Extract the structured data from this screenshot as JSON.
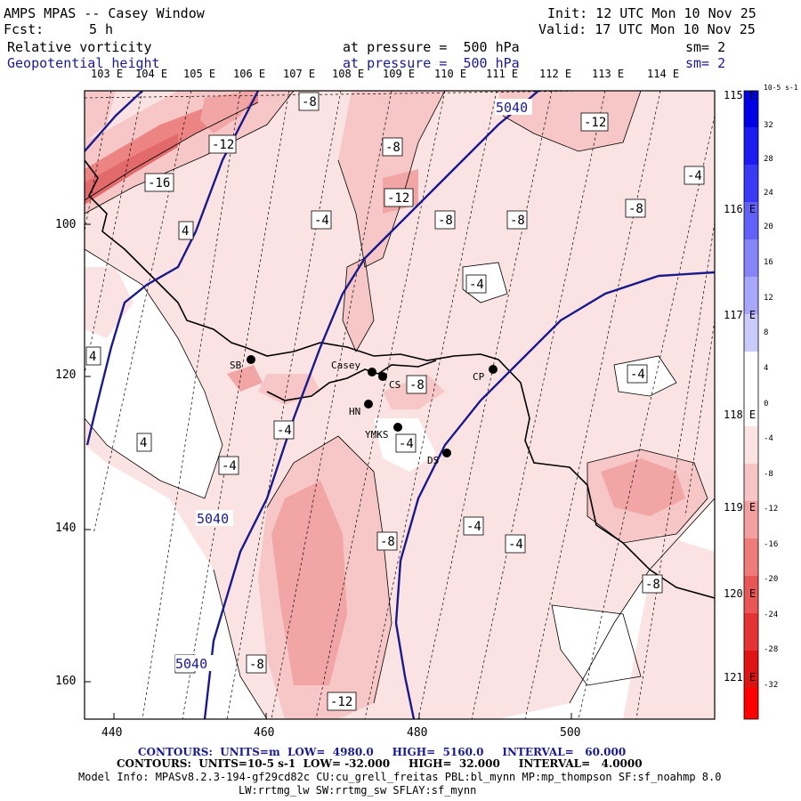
{
  "header": {
    "title": "AMPS MPAS -- Casey Window",
    "fcst_label": "Fcst:",
    "fcst_value": "5 h",
    "init": "Init: 12 UTC Mon 10 Nov 25",
    "valid": "Valid: 17 UTC Mon 10 Nov 25",
    "field1": "Relative vorticity",
    "field1_level": "at pressure =  500 hPa",
    "field1_sm": "sm= 2",
    "field2": "Geopotential height",
    "field2_level": "at pressure =  500 hPa",
    "field2_sm": "sm= 2"
  },
  "longitudes_top": [
    "103 E",
    "104 E",
    "105 E",
    "106 E",
    "107 E",
    "108 E",
    "109 E",
    "110 E",
    "111 E",
    "112 E",
    "113 E",
    "114 E"
  ],
  "longitudes_right": [
    "115 E",
    "116 E",
    "117 E",
    "118 E",
    "119 E",
    "120 E",
    "121 E"
  ],
  "y_ticks": [
    "100",
    "120",
    "140",
    "160"
  ],
  "x_ticks": [
    "440",
    "460",
    "480",
    "500"
  ],
  "colorbar": {
    "units": "10-5 s-1",
    "labels": [
      "32",
      "28",
      "24",
      "20",
      "16",
      "12",
      "8",
      "4",
      "0",
      "-4",
      "-8",
      "-12",
      "-16",
      "-20",
      "-24",
      "-28",
      "-32"
    ]
  },
  "vorticity_labels": [
    "-8",
    "-12",
    "-12",
    "-16",
    "-8",
    "-12",
    "-8",
    "-8",
    "-8",
    "-4",
    "4",
    "-4",
    "4",
    "-8",
    "-4",
    "4",
    "-4",
    "-4",
    "-8",
    "-4",
    "-4",
    "-8",
    "-4",
    "-8",
    "-4",
    "-8",
    "-12"
  ],
  "height_labels": [
    "5040",
    "5040",
    "5040"
  ],
  "stations": [
    "Casey",
    "CS",
    "HN",
    "CP",
    "YMKS",
    "DS",
    "SB"
  ],
  "footer": {
    "line1": "CONTOURS:  UNITS=m  LOW=  4980.0     HIGH=  5160.0     INTERVAL=   60.000",
    "line2": "CONTOURS:  UNITS=10-5 s-1  LOW= -32.000     HIGH=  32.000     INTERVAL=   4.0000",
    "line3": "Model Info: MPASv8.2.3-194-gf29cd82c CU:cu_grell_freitas PBL:bl_mynn MP:mp_thompson SF:sf_noahmp 8.0",
    "line4": "LW:rrtmg_lw SW:rrtmg_sw SFLAY:sf_mynn"
  },
  "colors": {
    "neg4": "#fbe3e3",
    "neg8": "#f7c6c6",
    "neg12": "#f1a5a5",
    "neg16": "#ec8484",
    "height_line": "#1a1a8c"
  }
}
